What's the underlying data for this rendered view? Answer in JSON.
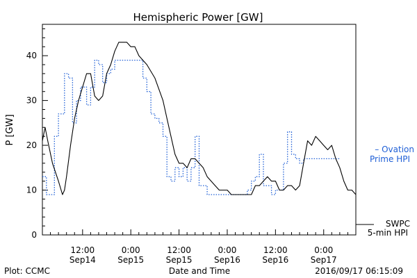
{
  "chart_data": {
    "type": "line",
    "title": "Hemispheric Power [GW]",
    "xlabel": "Date and Time",
    "ylabel": "P [GW]",
    "ylim": [
      0,
      47
    ],
    "y_ticks": [
      "0",
      "10",
      "20",
      "30",
      "40"
    ],
    "x_range": [
      "2016-09-14 02:00",
      "2016-09-17 08:00"
    ],
    "x_ticks": [
      {
        "time": "12:00",
        "date": "Sep14"
      },
      {
        "time": "0:00",
        "date": "Sep15"
      },
      {
        "time": "12:00",
        "date": "Sep15"
      },
      {
        "time": "0:00",
        "date": "Sep16"
      },
      {
        "time": "12:00",
        "date": "Sep16"
      },
      {
        "time": "0:00",
        "date": "Sep17"
      }
    ],
    "grid": false,
    "legend_placement": "right",
    "series": [
      {
        "name": "SWPC 5-min HPI",
        "color": "#000000",
        "style": "solid",
        "legend_labels": [
          "SWPC",
          "5-min HPI"
        ],
        "points": [
          [
            "2016-09-14 02:00",
            21
          ],
          [
            "2016-09-14 02:40",
            24
          ],
          [
            "2016-09-14 03:20",
            21
          ],
          [
            "2016-09-14 04:30",
            16
          ],
          [
            "2016-09-14 06:00",
            12
          ],
          [
            "2016-09-14 07:00",
            9
          ],
          [
            "2016-09-14 07:30",
            10
          ],
          [
            "2016-09-14 08:00",
            13
          ],
          [
            "2016-09-14 09:00",
            20
          ],
          [
            "2016-09-14 10:00",
            26
          ],
          [
            "2016-09-14 11:00",
            30
          ],
          [
            "2016-09-14 12:00",
            33
          ],
          [
            "2016-09-14 13:00",
            36
          ],
          [
            "2016-09-14 14:00",
            36
          ],
          [
            "2016-09-14 15:00",
            31
          ],
          [
            "2016-09-14 16:00",
            30
          ],
          [
            "2016-09-14 17:00",
            31
          ],
          [
            "2016-09-14 18:00",
            36
          ],
          [
            "2016-09-14 19:00",
            38
          ],
          [
            "2016-09-14 20:00",
            41
          ],
          [
            "2016-09-14 21:00",
            43
          ],
          [
            "2016-09-14 22:00",
            43
          ],
          [
            "2016-09-14 23:00",
            43
          ],
          [
            "2016-09-15 00:00",
            42
          ],
          [
            "2016-09-15 01:00",
            42
          ],
          [
            "2016-09-15 02:00",
            40
          ],
          [
            "2016-09-15 03:00",
            39
          ],
          [
            "2016-09-15 04:00",
            38
          ],
          [
            "2016-09-15 06:00",
            35
          ],
          [
            "2016-09-15 08:00",
            30
          ],
          [
            "2016-09-15 09:00",
            26
          ],
          [
            "2016-09-15 10:00",
            22
          ],
          [
            "2016-09-15 11:00",
            18
          ],
          [
            "2016-09-15 12:00",
            16
          ],
          [
            "2016-09-15 13:00",
            16
          ],
          [
            "2016-09-15 14:00",
            15
          ],
          [
            "2016-09-15 15:00",
            17
          ],
          [
            "2016-09-15 16:00",
            17
          ],
          [
            "2016-09-15 17:00",
            16
          ],
          [
            "2016-09-15 18:00",
            15
          ],
          [
            "2016-09-15 19:00",
            13
          ],
          [
            "2016-09-15 20:00",
            12
          ],
          [
            "2016-09-15 21:00",
            11
          ],
          [
            "2016-09-15 22:00",
            10
          ],
          [
            "2016-09-16 00:00",
            10
          ],
          [
            "2016-09-16 01:00",
            9
          ],
          [
            "2016-09-16 02:00",
            9
          ],
          [
            "2016-09-16 04:00",
            9
          ],
          [
            "2016-09-16 06:00",
            9
          ],
          [
            "2016-09-16 07:00",
            11
          ],
          [
            "2016-09-16 08:00",
            11
          ],
          [
            "2016-09-16 09:00",
            12
          ],
          [
            "2016-09-16 10:00",
            13
          ],
          [
            "2016-09-16 11:00",
            12
          ],
          [
            "2016-09-16 12:00",
            12
          ],
          [
            "2016-09-16 13:00",
            10
          ],
          [
            "2016-09-16 14:00",
            10
          ],
          [
            "2016-09-16 15:00",
            11
          ],
          [
            "2016-09-16 16:00",
            11
          ],
          [
            "2016-09-16 17:00",
            10
          ],
          [
            "2016-09-16 18:00",
            11
          ],
          [
            "2016-09-16 19:00",
            16
          ],
          [
            "2016-09-16 20:00",
            21
          ],
          [
            "2016-09-16 21:00",
            20
          ],
          [
            "2016-09-16 22:00",
            22
          ],
          [
            "2016-09-16 23:00",
            21
          ],
          [
            "2016-09-17 00:00",
            20
          ],
          [
            "2016-09-17 01:00",
            19
          ],
          [
            "2016-09-17 02:00",
            20
          ],
          [
            "2016-09-17 03:00",
            17
          ],
          [
            "2016-09-17 04:00",
            15
          ],
          [
            "2016-09-17 05:00",
            12
          ],
          [
            "2016-09-17 06:00",
            10
          ],
          [
            "2016-09-17 07:00",
            10
          ],
          [
            "2016-09-17 08:00",
            9
          ]
        ]
      },
      {
        "name": "Ovation Prime HPI",
        "color": "#1f5fd6",
        "style": "dotted",
        "legend_labels": [
          "– Ovation",
          "Prime HPI"
        ],
        "points": [
          [
            "2016-09-14 02:00",
            13
          ],
          [
            "2016-09-14 03:00",
            13
          ],
          [
            "2016-09-14 03:00",
            9
          ],
          [
            "2016-09-14 05:00",
            9
          ],
          [
            "2016-09-14 05:00",
            22
          ],
          [
            "2016-09-14 06:00",
            22
          ],
          [
            "2016-09-14 06:00",
            27
          ],
          [
            "2016-09-14 07:30",
            27
          ],
          [
            "2016-09-14 07:30",
            36
          ],
          [
            "2016-09-14 08:30",
            36
          ],
          [
            "2016-09-14 08:30",
            35
          ],
          [
            "2016-09-14 09:30",
            35
          ],
          [
            "2016-09-14 09:30",
            25
          ],
          [
            "2016-09-14 10:30",
            25
          ],
          [
            "2016-09-14 10:30",
            30
          ],
          [
            "2016-09-14 11:30",
            30
          ],
          [
            "2016-09-14 11:30",
            33
          ],
          [
            "2016-09-14 13:00",
            33
          ],
          [
            "2016-09-14 13:00",
            29
          ],
          [
            "2016-09-14 14:00",
            29
          ],
          [
            "2016-09-14 14:00",
            33
          ],
          [
            "2016-09-14 15:00",
            33
          ],
          [
            "2016-09-14 15:00",
            39
          ],
          [
            "2016-09-14 16:00",
            39
          ],
          [
            "2016-09-14 16:00",
            38
          ],
          [
            "2016-09-14 17:00",
            38
          ],
          [
            "2016-09-14 17:00",
            34
          ],
          [
            "2016-09-14 18:00",
            34
          ],
          [
            "2016-09-14 18:00",
            36
          ],
          [
            "2016-09-14 19:00",
            36
          ],
          [
            "2016-09-14 19:00",
            37
          ],
          [
            "2016-09-14 20:00",
            37
          ],
          [
            "2016-09-14 20:00",
            39
          ],
          [
            "2016-09-15 03:00",
            39
          ],
          [
            "2016-09-15 03:00",
            35
          ],
          [
            "2016-09-15 04:00",
            35
          ],
          [
            "2016-09-15 04:00",
            32
          ],
          [
            "2016-09-15 05:00",
            32
          ],
          [
            "2016-09-15 05:00",
            27
          ],
          [
            "2016-09-15 06:00",
            27
          ],
          [
            "2016-09-15 06:00",
            26
          ],
          [
            "2016-09-15 07:00",
            26
          ],
          [
            "2016-09-15 07:00",
            25
          ],
          [
            "2016-09-15 08:00",
            25
          ],
          [
            "2016-09-15 08:00",
            22
          ],
          [
            "2016-09-15 09:00",
            22
          ],
          [
            "2016-09-15 09:00",
            13
          ],
          [
            "2016-09-15 10:00",
            13
          ],
          [
            "2016-09-15 10:00",
            12
          ],
          [
            "2016-09-15 11:00",
            12
          ],
          [
            "2016-09-15 11:00",
            15
          ],
          [
            "2016-09-15 12:00",
            15
          ],
          [
            "2016-09-15 12:00",
            13
          ],
          [
            "2016-09-15 13:00",
            13
          ],
          [
            "2016-09-15 13:00",
            15
          ],
          [
            "2016-09-15 14:00",
            15
          ],
          [
            "2016-09-15 14:00",
            12
          ],
          [
            "2016-09-15 15:00",
            12
          ],
          [
            "2016-09-15 15:00",
            15
          ],
          [
            "2016-09-15 16:00",
            15
          ],
          [
            "2016-09-15 16:00",
            22
          ],
          [
            "2016-09-15 17:00",
            22
          ],
          [
            "2016-09-15 17:00",
            11
          ],
          [
            "2016-09-15 19:00",
            11
          ],
          [
            "2016-09-15 19:00",
            9
          ],
          [
            "2016-09-16 05:00",
            9
          ],
          [
            "2016-09-16 05:00",
            10
          ],
          [
            "2016-09-16 06:00",
            10
          ],
          [
            "2016-09-16 06:00",
            12
          ],
          [
            "2016-09-16 07:00",
            12
          ],
          [
            "2016-09-16 07:00",
            13
          ],
          [
            "2016-09-16 08:00",
            13
          ],
          [
            "2016-09-16 08:00",
            18
          ],
          [
            "2016-09-16 09:00",
            18
          ],
          [
            "2016-09-16 09:00",
            11
          ],
          [
            "2016-09-16 11:00",
            11
          ],
          [
            "2016-09-16 11:00",
            9
          ],
          [
            "2016-09-16 12:00",
            9
          ],
          [
            "2016-09-16 12:00",
            10
          ],
          [
            "2016-09-16 14:00",
            10
          ],
          [
            "2016-09-16 14:00",
            16
          ],
          [
            "2016-09-16 15:00",
            16
          ],
          [
            "2016-09-16 15:00",
            23
          ],
          [
            "2016-09-16 16:00",
            23
          ],
          [
            "2016-09-16 16:00",
            18
          ],
          [
            "2016-09-16 17:00",
            18
          ],
          [
            "2016-09-16 17:00",
            17
          ],
          [
            "2016-09-16 18:00",
            17
          ],
          [
            "2016-09-16 18:00",
            16
          ],
          [
            "2016-09-16 19:00",
            16
          ],
          [
            "2016-09-16 19:00",
            17
          ],
          [
            "2016-09-17 04:00",
            17
          ]
        ]
      }
    ],
    "footer_left": "Plot: CCMC",
    "footer_right": "2016/09/17 06:15:09"
  }
}
